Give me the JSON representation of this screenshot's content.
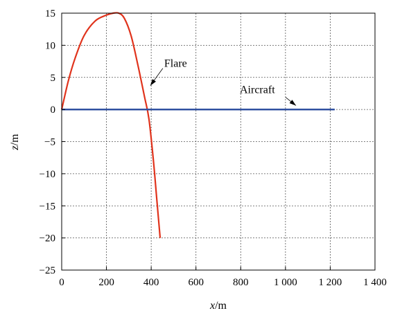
{
  "chart_data": {
    "type": "line",
    "title": "",
    "xlabel": {
      "var": "x",
      "unit": "/m"
    },
    "ylabel": {
      "var": "z",
      "unit": "/m"
    },
    "xlim": [
      0,
      1400
    ],
    "ylim": [
      -25,
      15
    ],
    "xticks": [
      0,
      200,
      400,
      600,
      800,
      1000,
      1200,
      1400
    ],
    "xtick_labels": [
      "0",
      "200",
      "400",
      "600",
      "800",
      "1 000",
      "1 200",
      "1 400"
    ],
    "yticks": [
      15,
      10,
      5,
      0,
      -5,
      -10,
      -15,
      -20,
      -25
    ],
    "ytick_labels": [
      "15",
      "10",
      "5",
      "0",
      "−5",
      "−10",
      "−15",
      "−20",
      "−25"
    ],
    "grid": true,
    "grid_style": "dotted",
    "series": [
      {
        "name": "Flare",
        "color": "#e0331c",
        "x": [
          0,
          30,
          60,
          100,
          150,
          200,
          230,
          255,
          280,
          310,
          340,
          370,
          390,
          410,
          425,
          440
        ],
        "y": [
          0,
          4.5,
          8,
          11.5,
          13.8,
          14.7,
          15,
          15,
          14.2,
          11.5,
          7,
          2,
          -1.5,
          -8,
          -14,
          -20
        ]
      },
      {
        "name": "Aircraft",
        "color": "#2f50a0",
        "x": [
          0,
          1220
        ],
        "y": [
          0,
          0
        ]
      }
    ],
    "annotations": [
      {
        "text": "Flare",
        "series": "Flare",
        "x": 390,
        "y": 3.5
      },
      {
        "text": "Aircraft",
        "series": "Aircraft",
        "x": 1050,
        "y": 0.5
      }
    ]
  }
}
